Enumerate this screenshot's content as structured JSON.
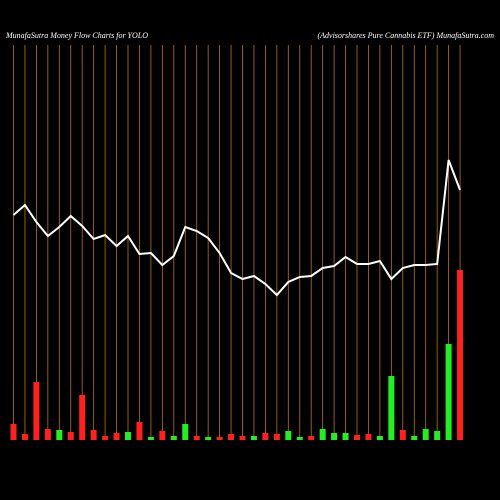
{
  "chart_data": {
    "type": "money-flow",
    "title": "MunafaSutra  Money Flow  Charts for YOLO",
    "subtitle": "(Advisorshares Pure   Cannabis ETF) MunafaSutra.com",
    "categories": [
      null,
      null,
      null,
      null,
      null,
      null,
      null,
      null,
      null,
      null,
      null,
      null,
      null,
      null,
      null,
      null,
      null,
      null,
      null,
      null,
      null,
      null,
      null,
      null,
      null,
      null,
      null,
      null,
      null,
      null,
      null,
      null,
      null,
      null,
      null,
      null,
      null,
      null,
      null,
      null
    ],
    "ylim": [
      0,
      440
    ],
    "grid_color": "#b8731a",
    "series": [
      {
        "type": "bar",
        "values": [
          16,
          6,
          58,
          11,
          10,
          8,
          45,
          10,
          4,
          7,
          8,
          18,
          3,
          9,
          4,
          16,
          4,
          3,
          3,
          6,
          4,
          4,
          7,
          6,
          9,
          3,
          4,
          11,
          7,
          7,
          5,
          6,
          4,
          64,
          10,
          4,
          11,
          9,
          96,
          170
        ],
        "colors": [
          "#ff2020",
          "#ff2020",
          "#ff2020",
          "#ff2020",
          "#22ee22",
          "#ff2020",
          "#ff2020",
          "#ff2020",
          "#ff2020",
          "#ff2020",
          "#22ee22",
          "#ff2020",
          "#22ee22",
          "#ff2020",
          "#22ee22",
          "#22ee22",
          "#ff2020",
          "#22ee22",
          "#ff2020",
          "#ff2020",
          "#ff2020",
          "#22ee22",
          "#ff2020",
          "#ff2020",
          "#22ee22",
          "#22ee22",
          "#ff2020",
          "#22ee22",
          "#22ee22",
          "#22ee22",
          "#ff2020",
          "#ff2020",
          "#22ee22",
          "#22ee22",
          "#ff2020",
          "#22ee22",
          "#22ee22",
          "#22ee22",
          "#22ee22",
          "#ff2020"
        ]
      },
      {
        "type": "line",
        "color": "#ffffff",
        "values": [
          225,
          235,
          218,
          204,
          213,
          224,
          214,
          201,
          205,
          194,
          204,
          186,
          187,
          175,
          184,
          213,
          209,
          202,
          187,
          167,
          161,
          164,
          156,
          145,
          158,
          163,
          164,
          172,
          174,
          183,
          176,
          176,
          179,
          161,
          172,
          175,
          175,
          176,
          280,
          250
        ]
      }
    ]
  }
}
